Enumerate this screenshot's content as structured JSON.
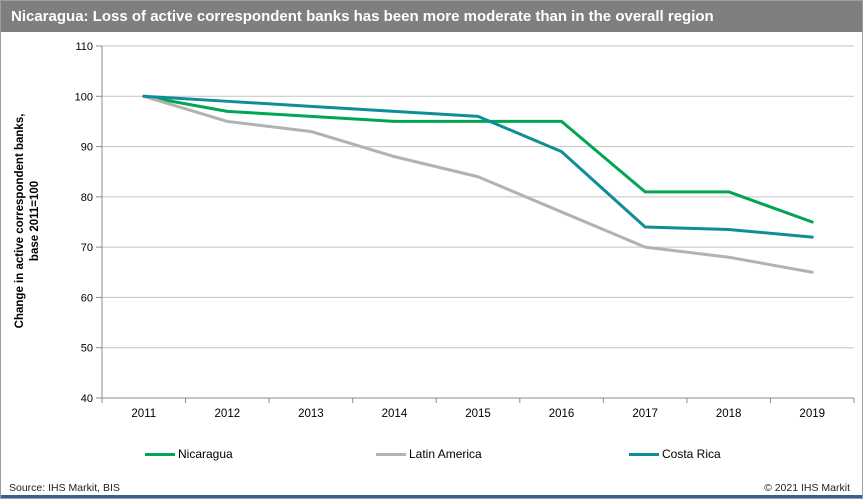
{
  "header": {
    "title": "Nicaragua: Loss of active correspondent banks has been more moderate than in the overall region"
  },
  "chart_data": {
    "type": "line",
    "title": "Nicaragua: Loss of active correspondent banks has been more moderate than in the overall region",
    "x": [
      "2011",
      "2012",
      "2013",
      "2014",
      "2015",
      "2016",
      "2017",
      "2018",
      "2019"
    ],
    "xlabel": "",
    "ylabel_line1": "Change in active correspondent banks,",
    "ylabel_line2": "base 2011=100",
    "ylim": [
      40,
      110
    ],
    "yticks": [
      110,
      100,
      90,
      80,
      70,
      60,
      50,
      40
    ],
    "grid": true,
    "legend_position": "bottom",
    "series": [
      {
        "name": "Nicaragua",
        "color": "#00a651",
        "values": [
          100,
          97,
          96,
          95,
          95,
          95,
          81,
          81,
          75
        ]
      },
      {
        "name": "Latin America",
        "color": "#b2b2b2",
        "values": [
          100,
          95,
          93,
          88,
          84,
          77,
          70,
          68,
          65
        ]
      },
      {
        "name": "Costa Rica",
        "color": "#0f8e99",
        "values": [
          100,
          99,
          98,
          97,
          96,
          89,
          74,
          73.5,
          72
        ]
      }
    ]
  },
  "footer": {
    "source": "Source: IHS Markit, BIS",
    "copyright": "© 2021  IHS Markit"
  },
  "colors": {
    "title_bar": "#7f7f7f",
    "grid": "#c3c3c3",
    "axis": "#8c8c8c",
    "accent_line": "#355e91"
  }
}
